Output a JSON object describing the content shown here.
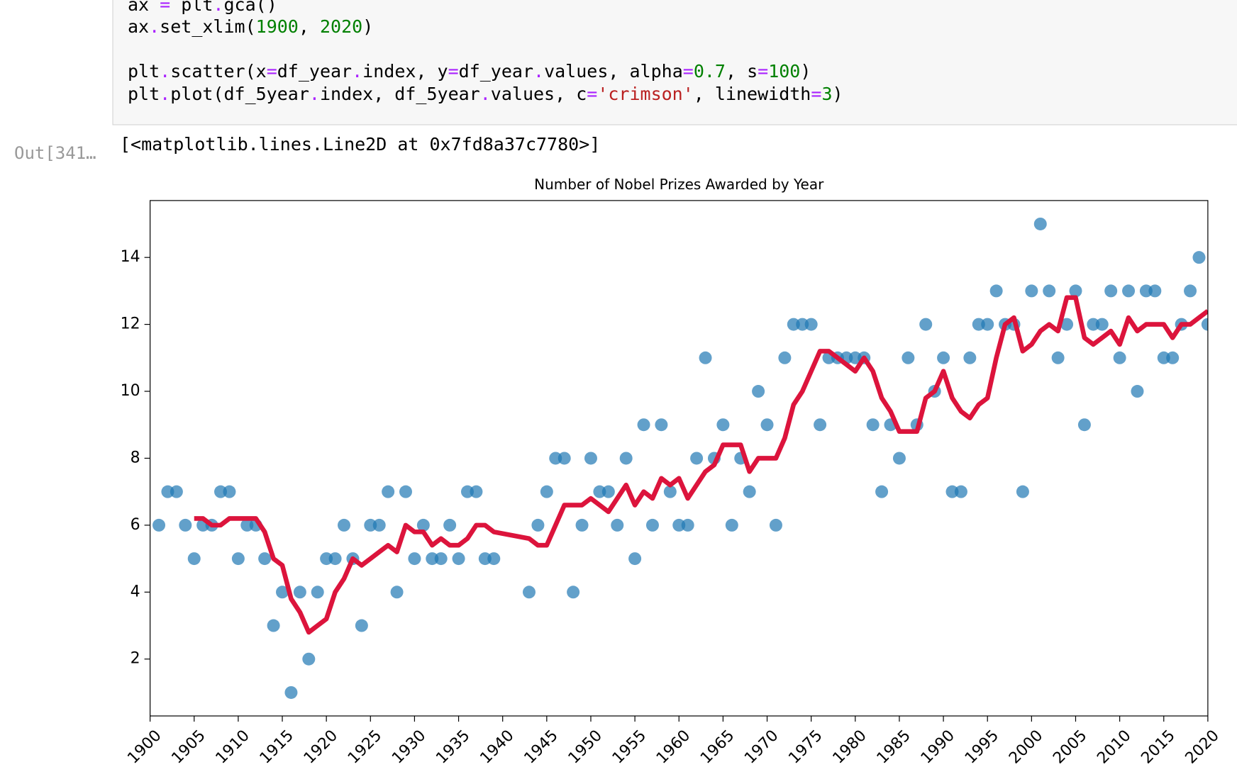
{
  "code_blocks": [
    [
      [
        "ax",
        " = ",
        "plt",
        ".",
        "gca()"
      ],
      [
        "ax",
        ".",
        "set_xlim(",
        "1900",
        ", ",
        "2020",
        ")"
      ]
    ],
    [
      [
        "plt",
        ".",
        "scatter(x",
        "=",
        "df_year",
        ".",
        "index, y",
        "=",
        "df_year",
        ".",
        "values, alpha",
        "=",
        "0.7",
        ", s",
        "=",
        "100",
        ")"
      ],
      [
        "plt",
        ".",
        "plot(df_5year",
        ".",
        "index, df_5year",
        ".",
        "values, c",
        "=",
        "'crimson'",
        ", linewidth",
        "=",
        "3",
        ")"
      ]
    ]
  ],
  "output_prompt": "Out[341…",
  "output_text": "[<matplotlib.lines.Line2D at 0x7fd8a37c7780>]",
  "chart_data": {
    "type": "scatter",
    "title": "Number of Nobel Prizes Awarded by Year",
    "xlim": [
      1900,
      2020
    ],
    "xticks": [
      1900,
      1905,
      1910,
      1915,
      1920,
      1925,
      1930,
      1935,
      1940,
      1945,
      1950,
      1955,
      1960,
      1965,
      1970,
      1975,
      1980,
      1985,
      1990,
      1995,
      2000,
      2005,
      2010,
      2015,
      2020
    ],
    "ylim": [
      0.3,
      15.7
    ],
    "yticks": [
      2,
      4,
      6,
      8,
      10,
      12,
      14
    ],
    "series": [
      {
        "type": "scatter",
        "color": "#1f77b4",
        "alpha": 0.7,
        "size": 100,
        "x": [
          1901,
          1902,
          1903,
          1904,
          1905,
          1906,
          1907,
          1908,
          1909,
          1910,
          1911,
          1912,
          1913,
          1914,
          1915,
          1916,
          1917,
          1918,
          1919,
          1920,
          1921,
          1922,
          1923,
          1924,
          1925,
          1926,
          1927,
          1928,
          1929,
          1930,
          1931,
          1932,
          1933,
          1934,
          1935,
          1936,
          1937,
          1938,
          1939,
          1943,
          1944,
          1945,
          1946,
          1947,
          1948,
          1949,
          1950,
          1951,
          1952,
          1953,
          1954,
          1955,
          1956,
          1957,
          1958,
          1959,
          1960,
          1961,
          1962,
          1963,
          1964,
          1965,
          1966,
          1967,
          1968,
          1969,
          1970,
          1971,
          1972,
          1973,
          1974,
          1975,
          1976,
          1977,
          1978,
          1979,
          1980,
          1981,
          1982,
          1983,
          1984,
          1985,
          1986,
          1987,
          1988,
          1989,
          1990,
          1991,
          1992,
          1993,
          1994,
          1995,
          1996,
          1997,
          1998,
          1999,
          2000,
          2001,
          2002,
          2003,
          2004,
          2005,
          2006,
          2007,
          2008,
          2009,
          2010,
          2011,
          2012,
          2013,
          2014,
          2015,
          2016,
          2017,
          2018,
          2019,
          2020
        ],
        "values": [
          6,
          7,
          7,
          6,
          5,
          6,
          6,
          7,
          7,
          5,
          6,
          6,
          5,
          3,
          4,
          1,
          4,
          2,
          4,
          5,
          5,
          6,
          5,
          3,
          6,
          6,
          7,
          4,
          7,
          5,
          6,
          5,
          5,
          6,
          5,
          7,
          7,
          5,
          5,
          4,
          6,
          7,
          8,
          8,
          4,
          6,
          8,
          7,
          7,
          6,
          8,
          5,
          9,
          6,
          9,
          7,
          6,
          6,
          8,
          11,
          8,
          9,
          6,
          8,
          7,
          10,
          9,
          6,
          11,
          12,
          12,
          12,
          9,
          11,
          11,
          11,
          11,
          11,
          9,
          7,
          9,
          8,
          11,
          9,
          12,
          10,
          11,
          7,
          7,
          11,
          12,
          12,
          13,
          12,
          12,
          7,
          13,
          15,
          13,
          11,
          12,
          13,
          9,
          12,
          12,
          13,
          11,
          13,
          10,
          13,
          13,
          11,
          11,
          12,
          13,
          14,
          12
        ]
      },
      {
        "type": "line",
        "color": "crimson",
        "linewidth": 3,
        "x": [
          1905,
          1906,
          1907,
          1908,
          1909,
          1910,
          1911,
          1912,
          1913,
          1914,
          1915,
          1916,
          1917,
          1918,
          1919,
          1920,
          1921,
          1922,
          1923,
          1924,
          1925,
          1926,
          1927,
          1928,
          1929,
          1930,
          1931,
          1932,
          1933,
          1934,
          1935,
          1936,
          1937,
          1938,
          1939,
          1943,
          1944,
          1945,
          1946,
          1947,
          1948,
          1949,
          1950,
          1951,
          1952,
          1953,
          1954,
          1955,
          1956,
          1957,
          1958,
          1959,
          1960,
          1961,
          1962,
          1963,
          1964,
          1965,
          1966,
          1967,
          1968,
          1969,
          1970,
          1971,
          1972,
          1973,
          1974,
          1975,
          1976,
          1977,
          1978,
          1979,
          1980,
          1981,
          1982,
          1983,
          1984,
          1985,
          1986,
          1987,
          1988,
          1989,
          1990,
          1991,
          1992,
          1993,
          1994,
          1995,
          1996,
          1997,
          1998,
          1999,
          2000,
          2001,
          2002,
          2003,
          2004,
          2005,
          2006,
          2007,
          2008,
          2009,
          2010,
          2011,
          2012,
          2013,
          2014,
          2015,
          2016,
          2017,
          2018,
          2019,
          2020
        ],
        "values": [
          6.2,
          6.2,
          6.0,
          6.0,
          6.2,
          6.2,
          6.2,
          6.2,
          5.8,
          5.0,
          4.8,
          3.8,
          3.4,
          2.8,
          3.0,
          3.2,
          4.0,
          4.4,
          5.0,
          4.8,
          5.0,
          5.2,
          5.4,
          5.2,
          6.0,
          5.8,
          5.8,
          5.4,
          5.6,
          5.4,
          5.4,
          5.6,
          6.0,
          6.0,
          5.8,
          5.6,
          5.4,
          5.4,
          6.0,
          6.6,
          6.6,
          6.6,
          6.8,
          6.6,
          6.4,
          6.8,
          7.2,
          6.6,
          7.0,
          6.8,
          7.4,
          7.2,
          7.4,
          6.8,
          7.2,
          7.6,
          7.8,
          8.4,
          8.4,
          8.4,
          7.6,
          8.0,
          8.0,
          8.0,
          8.6,
          9.6,
          10.0,
          10.6,
          11.2,
          11.2,
          11.0,
          10.8,
          10.6,
          11.0,
          10.6,
          9.8,
          9.4,
          8.8,
          8.8,
          8.8,
          9.8,
          10.0,
          10.6,
          9.8,
          9.4,
          9.2,
          9.6,
          9.8,
          11.0,
          12.0,
          12.2,
          11.2,
          11.4,
          11.8,
          12.0,
          11.8,
          12.8,
          12.8,
          11.6,
          11.4,
          11.6,
          11.8,
          11.4,
          12.2,
          11.8,
          12.0,
          12.0,
          12.0,
          11.6,
          12.0,
          12.0,
          12.2,
          12.4
        ]
      }
    ]
  }
}
